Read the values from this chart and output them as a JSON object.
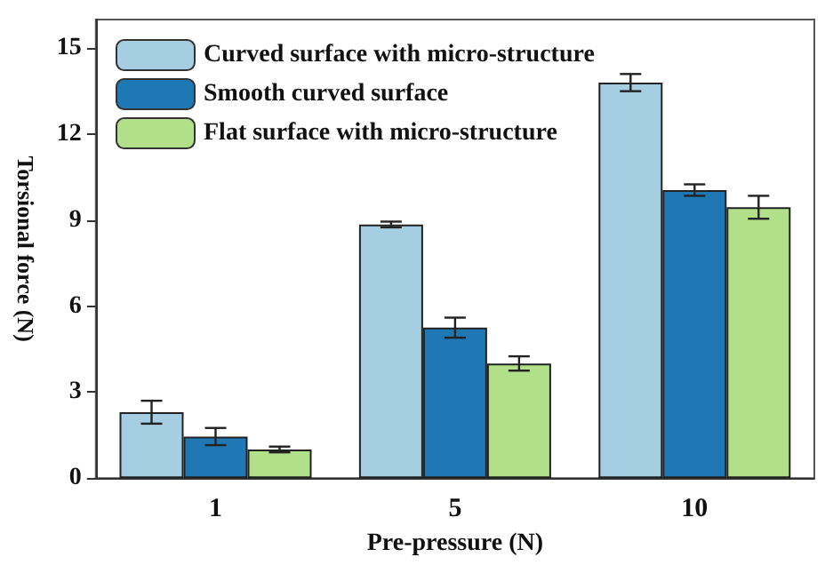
{
  "chart_data": {
    "type": "bar",
    "xlabel": "Pre-pressure (N)",
    "ylabel": "Torsional force (N)",
    "categories": [
      "1",
      "5",
      "10"
    ],
    "series": [
      {
        "name": "Curved surface with micro-structure",
        "color": "#a6cee3",
        "values": [
          2.3,
          8.85,
          13.8
        ],
        "errors": [
          0.4,
          0.1,
          0.3
        ]
      },
      {
        "name": "Smooth curved surface",
        "color": "#1f78b4",
        "values": [
          1.45,
          5.25,
          10.05
        ],
        "errors": [
          0.3,
          0.35,
          0.2
        ]
      },
      {
        "name": "Flat surface with micro-structure",
        "color": "#b2df8a",
        "values": [
          1.0,
          4.0,
          9.45
        ],
        "errors": [
          0.1,
          0.25,
          0.4
        ]
      }
    ],
    "ylim": [
      0,
      16
    ],
    "yticks": [
      0,
      3,
      6,
      9,
      12,
      15
    ],
    "grid": false,
    "legend": "top left"
  }
}
